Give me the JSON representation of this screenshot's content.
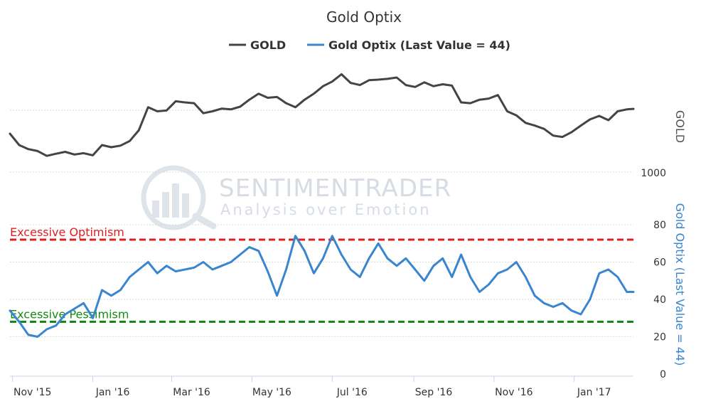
{
  "chart_data": {
    "type": "line",
    "title": "Gold Optix",
    "legend": {
      "placement": "top-center",
      "items": [
        {
          "name": "GOLD",
          "color": "#444444"
        },
        {
          "name": "Gold Optix (Last Value = 44)",
          "color": "#3a85d0"
        }
      ]
    },
    "watermark": {
      "line1": "SENTIMENTRADER",
      "line2": "Analysis over Emotion"
    },
    "x_axis": {
      "type": "date",
      "range": [
        "2015-10-30",
        "2017-02-15"
      ],
      "ticks": [
        {
          "date": "2015-11-01",
          "label": "Nov '15"
        },
        {
          "date": "2016-01-01",
          "label": "Jan '16"
        },
        {
          "date": "2016-03-01",
          "label": "Mar '16"
        },
        {
          "date": "2016-05-01",
          "label": "May '16"
        },
        {
          "date": "2016-07-01",
          "label": "Jul '16"
        },
        {
          "date": "2016-09-01",
          "label": "Sep '16"
        },
        {
          "date": "2016-11-01",
          "label": "Nov '16"
        },
        {
          "date": "2017-01-01",
          "label": "Jan '17"
        }
      ]
    },
    "y_axes": {
      "gold": {
        "title": "GOLD",
        "color": "#555555",
        "range": [
          1000,
          1400
        ],
        "ticks": [
          {
            "value": 1000,
            "label": "1000"
          }
        ],
        "grid": true
      },
      "optix": {
        "title": "Gold Optix (Last Value = 44)",
        "color": "#3a85d0",
        "range": [
          0,
          80
        ],
        "ticks": [
          {
            "value": 0,
            "label": "0"
          },
          {
            "value": 20,
            "label": "20"
          },
          {
            "value": 40,
            "label": "40"
          },
          {
            "value": 60,
            "label": "60"
          },
          {
            "value": 80,
            "label": "80"
          }
        ],
        "grid": true
      }
    },
    "bands": [
      {
        "name": "Excessive Optimism",
        "value": 72,
        "color": "#e02020"
      },
      {
        "name": "Excessive Pessimism",
        "value": 28,
        "color": "#138a13"
      }
    ],
    "series": [
      {
        "name": "GOLD",
        "axis": "gold",
        "color": "#444444",
        "x": [
          "2015-10-30",
          "2015-11-06",
          "2015-11-13",
          "2015-11-20",
          "2015-11-27",
          "2015-12-04",
          "2015-12-11",
          "2015-12-18",
          "2015-12-25",
          "2016-01-01",
          "2016-01-08",
          "2016-01-15",
          "2016-01-22",
          "2016-01-29",
          "2016-02-05",
          "2016-02-12",
          "2016-02-19",
          "2016-02-26",
          "2016-03-04",
          "2016-03-11",
          "2016-03-18",
          "2016-03-25",
          "2016-04-01",
          "2016-04-08",
          "2016-04-15",
          "2016-04-22",
          "2016-04-29",
          "2016-05-06",
          "2016-05-13",
          "2016-05-20",
          "2016-05-27",
          "2016-06-03",
          "2016-06-10",
          "2016-06-17",
          "2016-06-24",
          "2016-07-01",
          "2016-07-08",
          "2016-07-15",
          "2016-07-22",
          "2016-07-29",
          "2016-08-05",
          "2016-08-12",
          "2016-08-19",
          "2016-08-26",
          "2016-09-02",
          "2016-09-09",
          "2016-09-16",
          "2016-09-23",
          "2016-09-30",
          "2016-10-07",
          "2016-10-14",
          "2016-10-21",
          "2016-10-28",
          "2016-11-04",
          "2016-11-11",
          "2016-11-18",
          "2016-11-25",
          "2016-12-02",
          "2016-12-09",
          "2016-12-16",
          "2016-12-23",
          "2016-12-30",
          "2017-01-06",
          "2017-01-13",
          "2017-01-20",
          "2017-01-27",
          "2017-02-03",
          "2017-02-10",
          "2017-02-15"
        ],
        "values": [
          1142,
          1100,
          1085,
          1078,
          1060,
          1068,
          1075,
          1065,
          1070,
          1062,
          1100,
          1092,
          1098,
          1115,
          1155,
          1240,
          1225,
          1228,
          1262,
          1258,
          1255,
          1218,
          1225,
          1235,
          1232,
          1242,
          1268,
          1290,
          1275,
          1278,
          1255,
          1240,
          1268,
          1290,
          1318,
          1335,
          1362,
          1330,
          1322,
          1340,
          1342,
          1345,
          1350,
          1322,
          1315,
          1332,
          1318,
          1325,
          1320,
          1258,
          1255,
          1268,
          1272,
          1285,
          1225,
          1210,
          1182,
          1172,
          1160,
          1135,
          1130,
          1148,
          1172,
          1195,
          1208,
          1192,
          1225,
          1232,
          1234
        ]
      },
      {
        "name": "Gold Optix (Last Value = 44)",
        "axis": "optix",
        "color": "#3a85d0",
        "x": [
          "2015-10-30",
          "2015-11-06",
          "2015-11-13",
          "2015-11-20",
          "2015-11-27",
          "2015-12-04",
          "2015-12-11",
          "2015-12-18",
          "2015-12-25",
          "2016-01-01",
          "2016-01-08",
          "2016-01-15",
          "2016-01-22",
          "2016-01-29",
          "2016-02-05",
          "2016-02-12",
          "2016-02-19",
          "2016-02-26",
          "2016-03-04",
          "2016-03-11",
          "2016-03-18",
          "2016-03-25",
          "2016-04-01",
          "2016-04-08",
          "2016-04-15",
          "2016-04-22",
          "2016-04-29",
          "2016-05-06",
          "2016-05-13",
          "2016-05-20",
          "2016-05-27",
          "2016-06-03",
          "2016-06-10",
          "2016-06-17",
          "2016-06-24",
          "2016-07-01",
          "2016-07-08",
          "2016-07-15",
          "2016-07-22",
          "2016-07-29",
          "2016-08-05",
          "2016-08-12",
          "2016-08-19",
          "2016-08-26",
          "2016-09-02",
          "2016-09-09",
          "2016-09-16",
          "2016-09-23",
          "2016-09-30",
          "2016-10-07",
          "2016-10-14",
          "2016-10-21",
          "2016-10-28",
          "2016-11-04",
          "2016-11-11",
          "2016-11-18",
          "2016-11-25",
          "2016-12-02",
          "2016-12-09",
          "2016-12-16",
          "2016-12-23",
          "2016-12-30",
          "2017-01-06",
          "2017-01-13",
          "2017-01-20",
          "2017-01-27",
          "2017-02-03",
          "2017-02-10",
          "2017-02-15"
        ],
        "values": [
          34,
          28,
          21,
          20,
          24,
          26,
          32,
          35,
          38,
          30,
          45,
          42,
          45,
          52,
          56,
          60,
          54,
          58,
          55,
          56,
          57,
          60,
          56,
          58,
          60,
          64,
          68,
          66,
          55,
          42,
          56,
          74,
          66,
          54,
          62,
          74,
          64,
          56,
          52,
          62,
          70,
          62,
          58,
          62,
          56,
          50,
          58,
          62,
          52,
          64,
          52,
          44,
          48,
          54,
          56,
          60,
          52,
          42,
          38,
          36,
          38,
          34,
          32,
          40,
          54,
          56,
          52,
          44,
          44
        ]
      }
    ]
  }
}
